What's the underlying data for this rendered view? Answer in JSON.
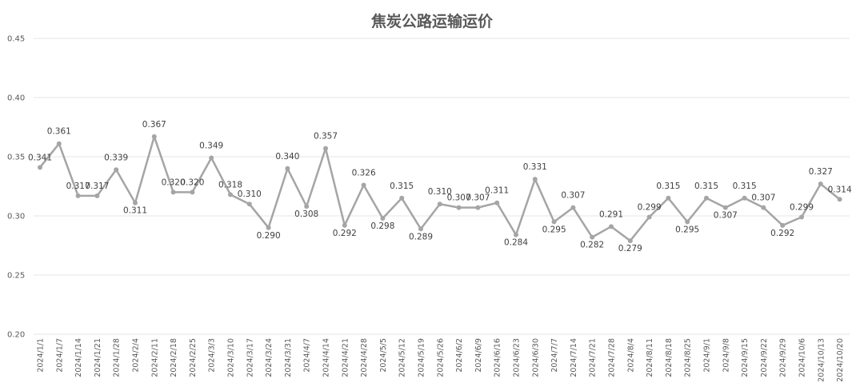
{
  "chart_data": {
    "type": "line",
    "title": "焦炭公路运输运价",
    "xlabel": "",
    "ylabel": "",
    "ylim": [
      0.2,
      0.45
    ],
    "yticks": [
      "0.20",
      "0.25",
      "0.30",
      "0.35",
      "0.40",
      "0.45"
    ],
    "grid": true,
    "legend": "none",
    "categories": [
      "2024/1/1",
      "2024/1/7",
      "2024/1/14",
      "2024/1/21",
      "2024/1/28",
      "2024/2/4",
      "2024/2/11",
      "2024/2/18",
      "2024/2/25",
      "2024/3/3",
      "2024/3/10",
      "2024/3/17",
      "2024/3/24",
      "2024/3/31",
      "2024/4/7",
      "2024/4/14",
      "2024/4/21",
      "2024/4/28",
      "2024/5/5",
      "2024/5/12",
      "2024/5/19",
      "2024/5/26",
      "2024/6/2",
      "2024/6/9",
      "2024/6/16",
      "2024/6/23",
      "2024/6/30",
      "2024/7/7",
      "2024/7/14",
      "2024/7/21",
      "2024/7/28",
      "2024/8/4",
      "2024/8/11",
      "2024/8/18",
      "2024/8/25",
      "2024/9/1",
      "2024/9/8",
      "2024/9/15",
      "2024/9/22",
      "2024/9/29",
      "2024/10/6",
      "2024/10/13",
      "2024/10/20"
    ],
    "series": [
      {
        "values": [
          0.341,
          0.361,
          0.317,
          0.317,
          0.339,
          0.311,
          0.367,
          0.32,
          0.32,
          0.349,
          0.318,
          0.31,
          0.29,
          0.34,
          0.308,
          0.357,
          0.292,
          0.326,
          0.298,
          0.315,
          0.289,
          0.31,
          0.307,
          0.307,
          0.311,
          0.284,
          0.331,
          0.295,
          0.307,
          0.282,
          0.291,
          0.279,
          0.299,
          0.315,
          0.295,
          0.315,
          0.307,
          0.315,
          0.307,
          0.292,
          0.299,
          0.327,
          0.314
        ],
        "labels": [
          "0.341",
          "0.361",
          "0.317",
          "0.317",
          "0.339",
          "0.311",
          "0.367",
          "0.320",
          "0.320",
          "0.349",
          "0.318",
          "0.310",
          "0.290",
          "0.340",
          "0.308",
          "0.357",
          "0.292",
          "0.326",
          "0.298",
          "0.315",
          "0.289",
          "0.310",
          "0.307",
          "0.307",
          "0.311",
          "0.284",
          "0.331",
          "0.295",
          "0.307",
          "0.282",
          "0.291",
          "0.279",
          "0.299",
          "0.315",
          "0.295",
          "0.315",
          "0.307",
          "0.315",
          "0.307",
          "0.292",
          "0.299",
          "0.327",
          "0.314"
        ]
      }
    ],
    "colors": {
      "line": "#a5a5a5",
      "grid": "#e4e4e4",
      "text": "#595959"
    }
  }
}
